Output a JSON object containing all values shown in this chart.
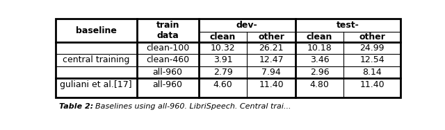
{
  "rows": [
    [
      "central training",
      "clean-100",
      "10.32",
      "26.21",
      "10.18",
      "24.99"
    ],
    [
      "",
      "clean-460",
      "3.91",
      "12.47",
      "3.46",
      "12.54"
    ],
    [
      "",
      "all-960",
      "2.79",
      "7.94",
      "2.96",
      "8.14"
    ],
    [
      "guliani et al.[17]",
      "all-960",
      "4.60",
      "11.40",
      "4.80",
      "11.40"
    ]
  ],
  "background_color": "#ffffff",
  "figsize": [
    6.4,
    1.88
  ],
  "dpi": 100,
  "caption": "Table 2:",
  "caption_rest": "Baselines using all-960. LibriSpeech. Central trai..."
}
